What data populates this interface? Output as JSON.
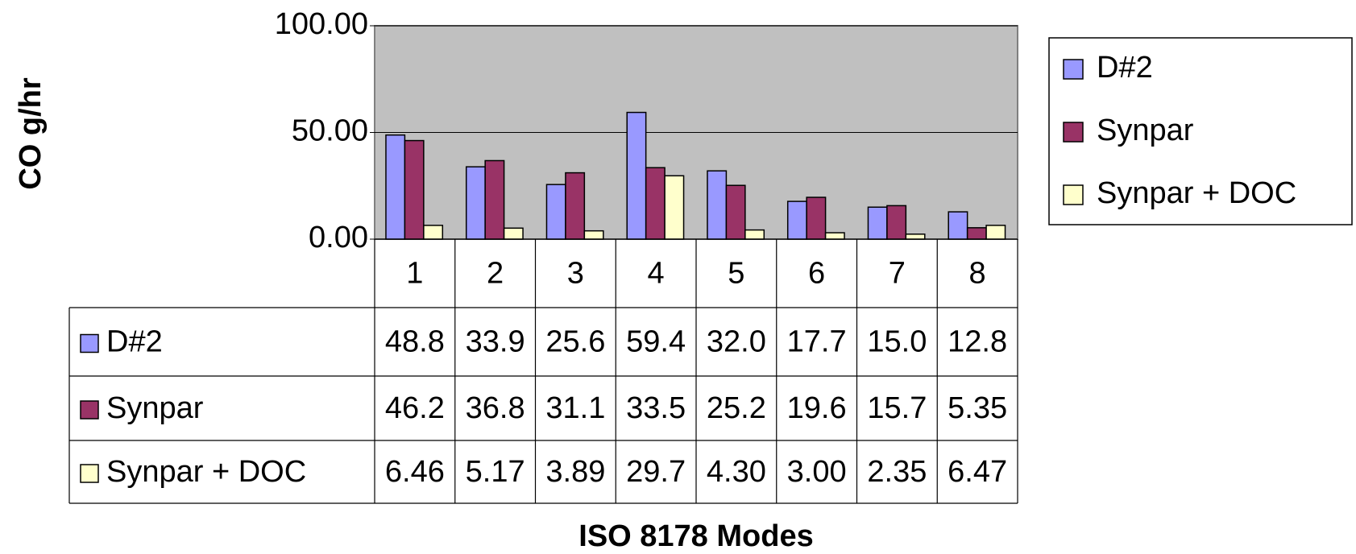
{
  "chart_data": {
    "type": "bar",
    "y_label": "CO g/hr",
    "x_label": "ISO 8178 Modes",
    "categories": [
      "1",
      "2",
      "3",
      "4",
      "5",
      "6",
      "7",
      "8"
    ],
    "series": [
      {
        "name": "D#2",
        "color": "#9999ff",
        "values": [
          48.8,
          33.9,
          25.6,
          59.4,
          32.0,
          17.7,
          15.0,
          12.8
        ],
        "value_labels": [
          "48.8",
          "33.9",
          "25.6",
          "59.4",
          "32.0",
          "17.7",
          "15.0",
          "12.8"
        ]
      },
      {
        "name": "Synpar",
        "color": "#993366",
        "values": [
          46.2,
          36.8,
          31.1,
          33.5,
          25.2,
          19.6,
          15.7,
          5.35
        ],
        "value_labels": [
          "46.2",
          "36.8",
          "31.1",
          "33.5",
          "25.2",
          "19.6",
          "15.7",
          "5.35"
        ]
      },
      {
        "name": "Synpar + DOC",
        "color": "#ffffcc",
        "values": [
          6.46,
          5.17,
          3.89,
          29.7,
          4.3,
          3.0,
          2.35,
          6.47
        ],
        "value_labels": [
          "6.46",
          "5.17",
          "3.89",
          "29.7",
          "4.30",
          "3.00",
          "2.35",
          "6.47"
        ]
      }
    ],
    "ylim": [
      0,
      100
    ],
    "yticks": [
      {
        "value": 0,
        "label": "0.00"
      },
      {
        "value": 50,
        "label": "50.00"
      },
      {
        "value": 100,
        "label": "100.00"
      }
    ],
    "grid": true,
    "plot_background": "#c0c0c0",
    "legend": "right"
  }
}
